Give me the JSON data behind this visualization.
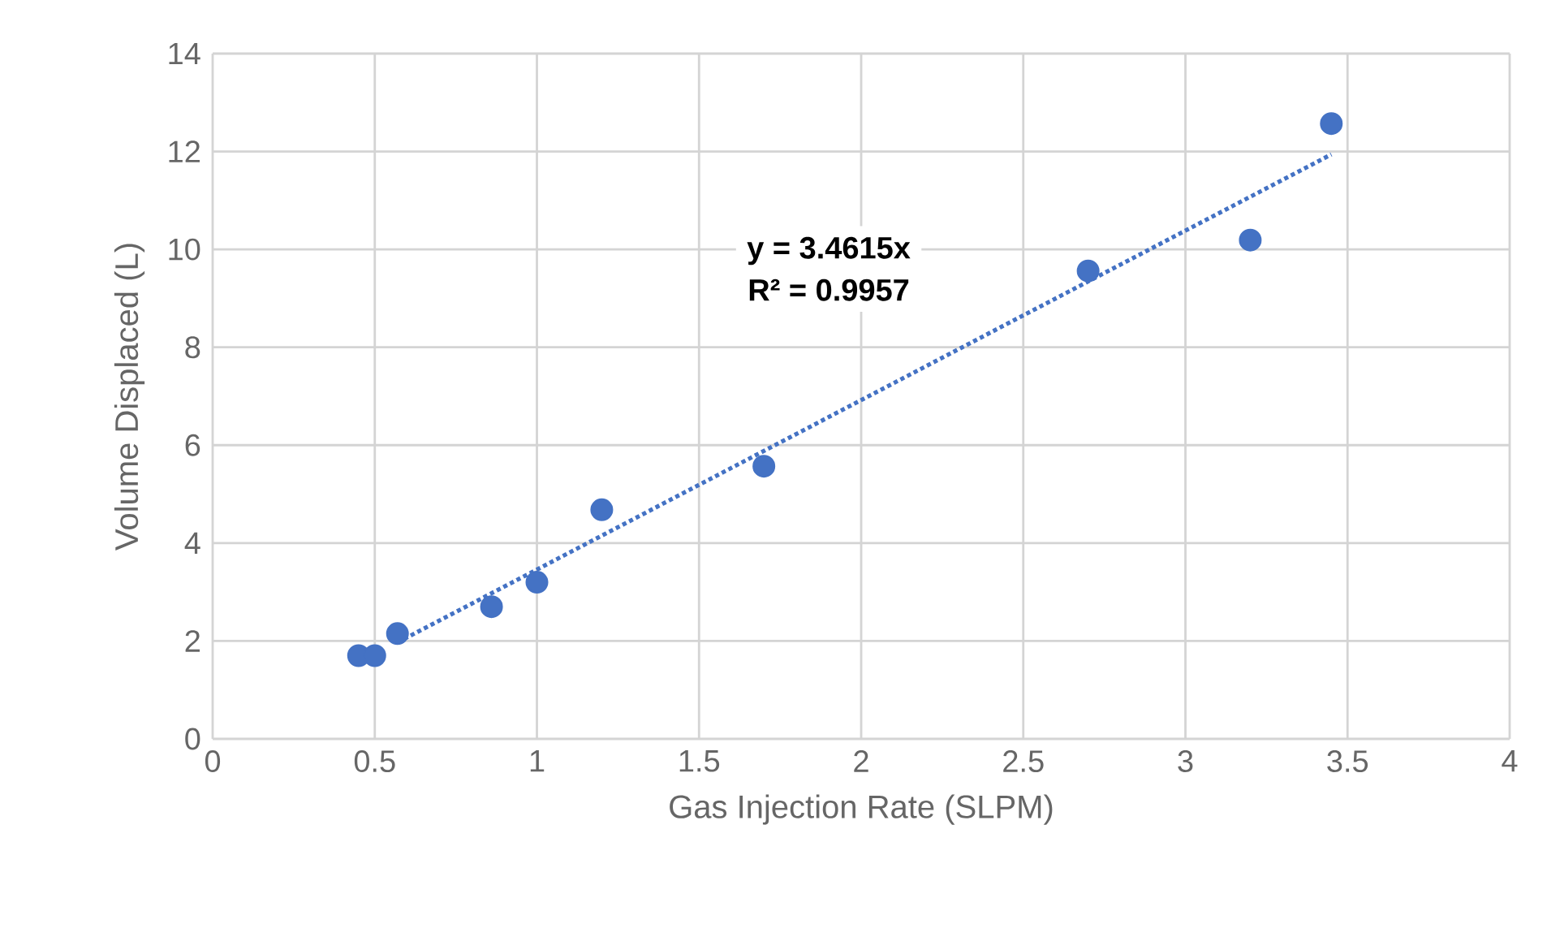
{
  "chart_data": {
    "type": "scatter",
    "xlabel": "Gas Injection Rate (SLPM)",
    "ylabel": "Volume Displaced (L)",
    "xlim": [
      0,
      4
    ],
    "ylim": [
      0,
      14
    ],
    "xticks": [
      0,
      0.5,
      1,
      1.5,
      2,
      2.5,
      3,
      3.5,
      4
    ],
    "yticks": [
      0,
      2,
      4,
      6,
      8,
      10,
      12,
      14
    ],
    "grid": true,
    "series": [
      {
        "color": "#4472c4",
        "marker": "circle",
        "x": [
          0.45,
          0.5,
          0.57,
          0.86,
          1.0,
          1.2,
          1.7,
          2.7,
          3.2,
          3.45
        ],
        "values": [
          1.7,
          1.7,
          2.15,
          2.7,
          3.2,
          4.68,
          5.57,
          9.56,
          10.19,
          12.57
        ]
      },
      {
        "type": "line",
        "color": "#4472c4",
        "marker": "none",
        "line_style": "dotted",
        "x": [
          0.57,
          3.45
        ],
        "values": [
          1.97,
          11.94
        ]
      }
    ],
    "annotations": [
      "y = 3.4615x",
      "R² = 0.9957"
    ]
  }
}
